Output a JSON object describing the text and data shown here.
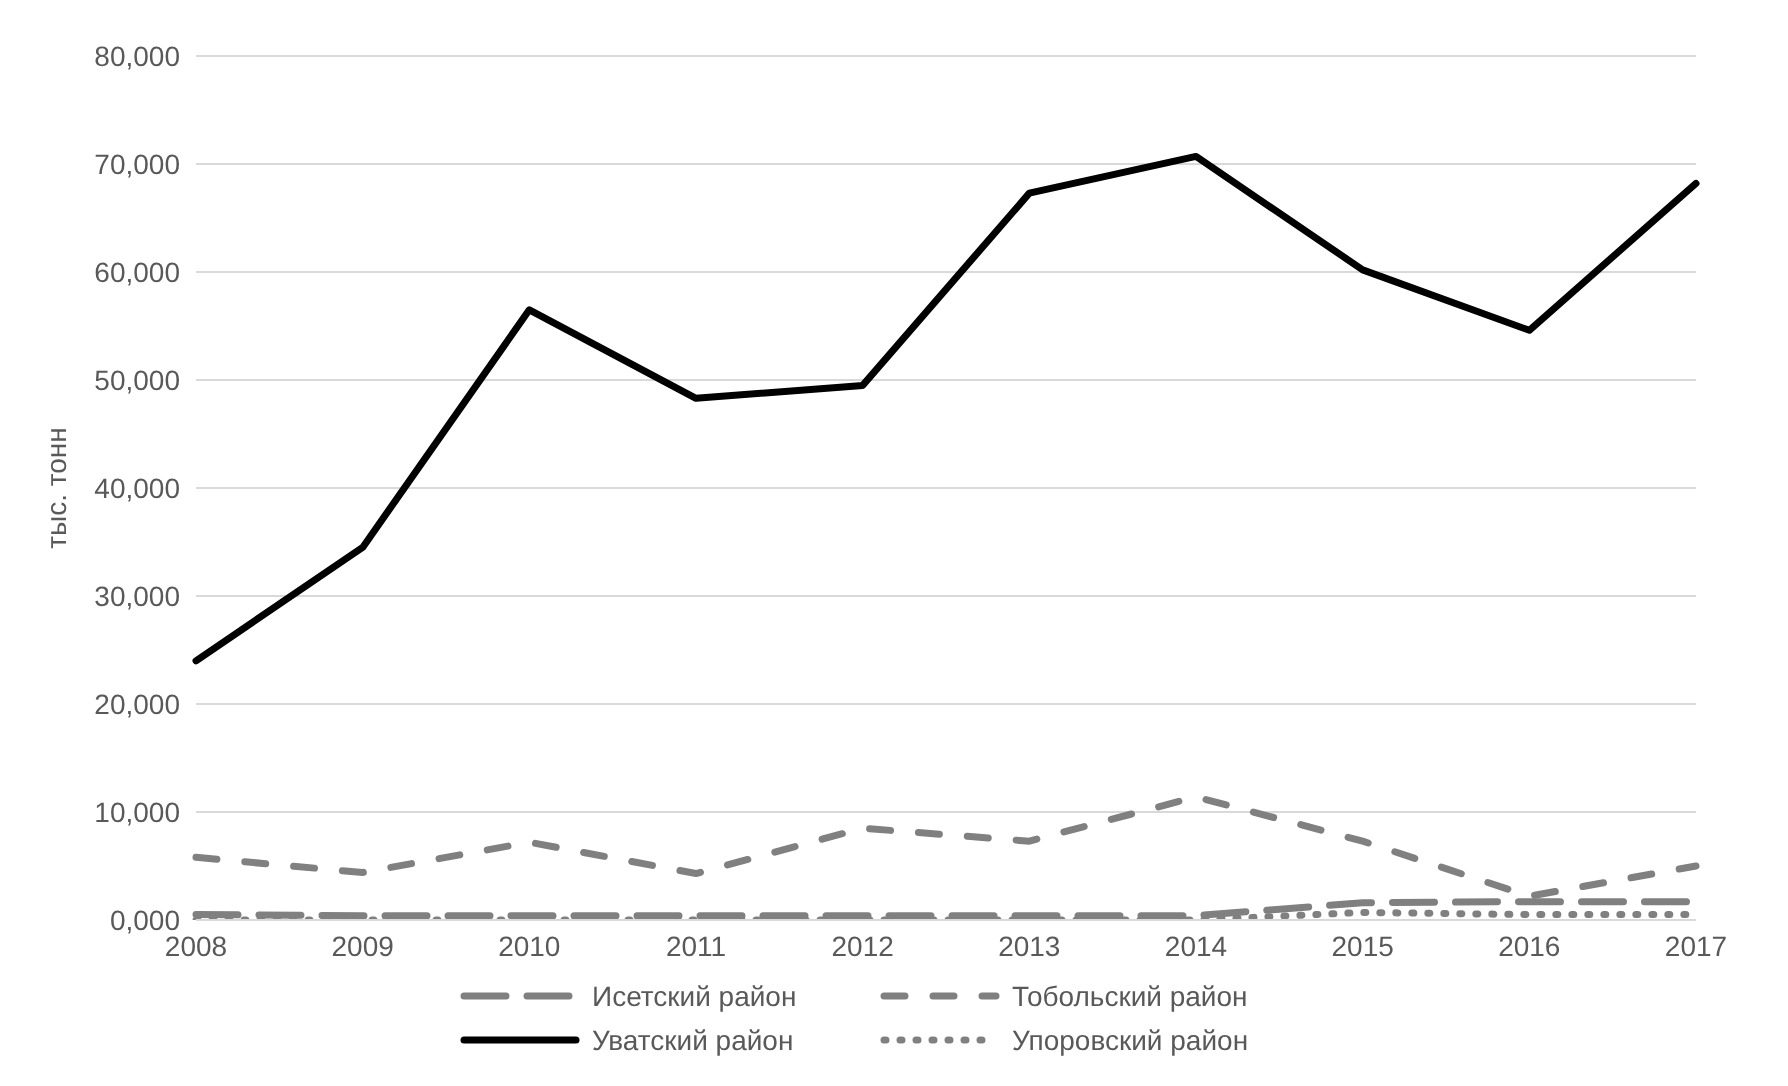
{
  "chart_data": {
    "type": "line",
    "ylabel": "тыс. тонн",
    "categories": [
      "2008",
      "2009",
      "2010",
      "2011",
      "2012",
      "2013",
      "2014",
      "2015",
      "2016",
      "2017"
    ],
    "series": [
      {
        "name": "Исетский район",
        "color": "#808080",
        "line_style": "long-dashed",
        "values": [
          500,
          400,
          400,
          400,
          400,
          400,
          400,
          1600,
          1700,
          1700
        ]
      },
      {
        "name": "Тобольский район",
        "color": "#808080",
        "line_style": "dashed",
        "values": [
          5800,
          4400,
          7200,
          4300,
          8500,
          7300,
          11400,
          7300,
          2200,
          5000
        ]
      },
      {
        "name": "Уватский район",
        "color": "#000000",
        "line_style": "solid",
        "values": [
          24000,
          34500,
          56500,
          48300,
          49500,
          67300,
          70700,
          60200,
          54600,
          68200
        ]
      },
      {
        "name": "Упоровский район",
        "color": "#808080",
        "line_style": "dotted",
        "values": [
          0,
          0,
          0,
          0,
          0,
          0,
          0,
          700,
          500,
          500
        ]
      }
    ],
    "ylim": [
      0,
      80000
    ],
    "yticks": [
      {
        "value": 0,
        "label": "0,000"
      },
      {
        "value": 10000,
        "label": "10,000"
      },
      {
        "value": 20000,
        "label": "20,000"
      },
      {
        "value": 30000,
        "label": "30,000"
      },
      {
        "value": 40000,
        "label": "40,000"
      },
      {
        "value": 50000,
        "label": "50,000"
      },
      {
        "value": 60000,
        "label": "60,000"
      },
      {
        "value": 70000,
        "label": "70,000"
      },
      {
        "value": 80000,
        "label": "80,000"
      }
    ],
    "grid": "y",
    "legend": "bottom",
    "marker": "none"
  }
}
